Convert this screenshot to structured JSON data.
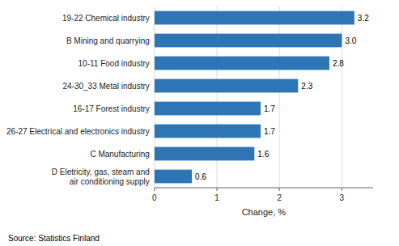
{
  "chart_data": {
    "type": "bar",
    "orientation": "horizontal",
    "categories": [
      "D Eletricity, gas, steam and\nair conditioning supply",
      "C Manufacturing",
      "26-27 Electrical and electronics industry",
      "16-17 Forest industry",
      "24-30_33 Metal industry",
      "10-11 Food industry",
      "B Mining and quarrying",
      "19-22 Chemical industry"
    ],
    "values": [
      0.6,
      1.6,
      1.7,
      1.7,
      2.3,
      2.8,
      3.0,
      3.2
    ],
    "value_labels": [
      "0.6",
      "1.6",
      "1.7",
      "1.7",
      "2.3",
      "2.8",
      "3.0",
      "3.2"
    ],
    "color": "#2E75B6",
    "xlabel": "Change, %",
    "annotations": [
      "Source: Statistics Finland"
    ],
    "xlim": [
      0,
      3.5
    ],
    "xticks": [
      0,
      1,
      2,
      3
    ],
    "grid": true,
    "data_labels": true
  }
}
